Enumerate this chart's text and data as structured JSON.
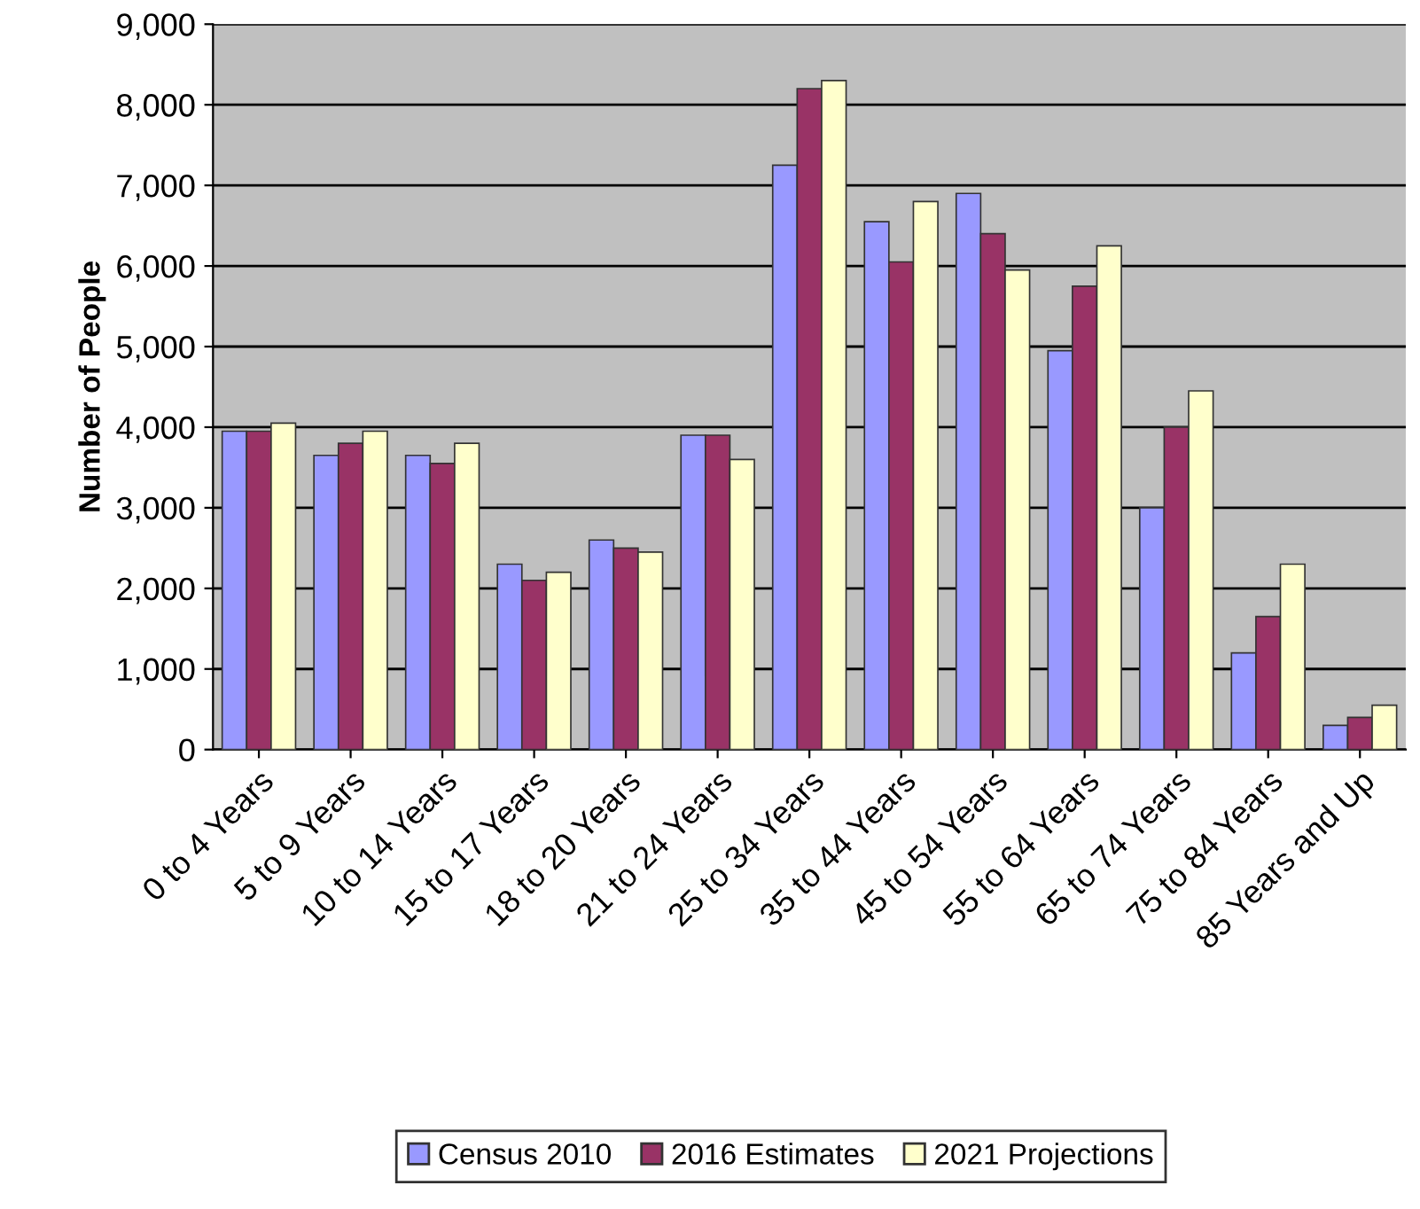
{
  "chart_data": {
    "type": "bar",
    "ylabel": "Number of People",
    "categories": [
      "0 to 4 Years",
      "5 to 9 Years",
      "10 to 14 Years",
      "15 to 17 Years",
      "18 to 20 Years",
      "21 to 24 Years",
      "25 to 34 Years",
      "35 to 44 Years",
      "45 to 54 Years",
      "55 to 64 Years",
      "65 to 74 Years",
      "75 to 84 Years",
      "85 Years and Up"
    ],
    "series": [
      {
        "name": "Census 2010",
        "color": "#9999ff",
        "values": [
          3950,
          3650,
          3650,
          2300,
          2600,
          3900,
          7250,
          6550,
          6900,
          4950,
          3000,
          1200,
          300
        ]
      },
      {
        "name": "2016 Estimates",
        "color": "#993366",
        "values": [
          3950,
          3800,
          3550,
          2100,
          2500,
          3900,
          8200,
          6050,
          6400,
          5750,
          4000,
          1650,
          400
        ]
      },
      {
        "name": "2021 Projections",
        "color": "#ffffcc",
        "values": [
          4050,
          3950,
          3800,
          2200,
          2450,
          3600,
          8300,
          6800,
          5950,
          6250,
          4450,
          2300,
          550
        ]
      }
    ],
    "ylim": [
      0,
      9000
    ],
    "yticks": [
      {
        "value": 0,
        "label": "0"
      },
      {
        "value": 1000,
        "label": "1,000"
      },
      {
        "value": 2000,
        "label": "2,000"
      },
      {
        "value": 3000,
        "label": "3,000"
      },
      {
        "value": 4000,
        "label": "4,000"
      },
      {
        "value": 5000,
        "label": "5,000"
      },
      {
        "value": 6000,
        "label": "6,000"
      },
      {
        "value": 7000,
        "label": "7,000"
      },
      {
        "value": 8000,
        "label": "8,000"
      },
      {
        "value": 9000,
        "label": "9,000"
      }
    ],
    "grid": "y",
    "legend": "bottom"
  }
}
